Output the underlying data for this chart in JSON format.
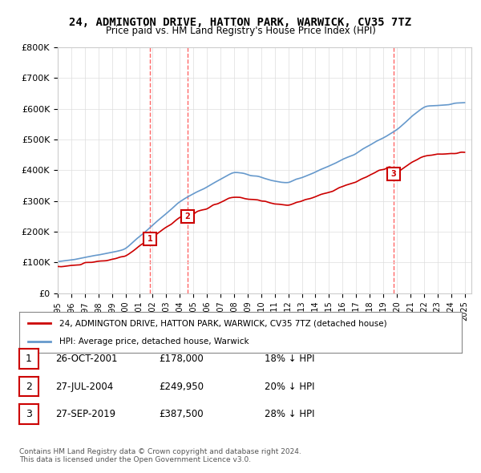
{
  "title": "24, ADMINGTON DRIVE, HATTON PARK, WARWICK, CV35 7TZ",
  "subtitle": "Price paid vs. HM Land Registry's House Price Index (HPI)",
  "ylabel": "",
  "ylim": [
    0,
    800000
  ],
  "yticks": [
    0,
    100000,
    200000,
    300000,
    400000,
    500000,
    600000,
    700000,
    800000
  ],
  "ytick_labels": [
    "£0",
    "£100K",
    "£200K",
    "£300K",
    "£400K",
    "£500K",
    "£600K",
    "£700K",
    "£800K"
  ],
  "hpi_color": "#6699cc",
  "price_color": "#cc0000",
  "sale_marker_color": "#cc0000",
  "vline_color": "#ff6666",
  "background_color": "#ffffff",
  "grid_color": "#dddddd",
  "sales": [
    {
      "date_num": 2001.82,
      "price": 178000,
      "label": "1"
    },
    {
      "date_num": 2004.57,
      "price": 249950,
      "label": "2"
    },
    {
      "date_num": 2019.74,
      "price": 387500,
      "label": "3"
    }
  ],
  "legend_entries": [
    "24, ADMINGTON DRIVE, HATTON PARK, WARWICK, CV35 7TZ (detached house)",
    "HPI: Average price, detached house, Warwick"
  ],
  "table_rows": [
    {
      "num": "1",
      "date": "26-OCT-2001",
      "price": "£178,000",
      "hpi": "18% ↓ HPI"
    },
    {
      "num": "2",
      "date": "27-JUL-2004",
      "price": "£249,950",
      "hpi": "20% ↓ HPI"
    },
    {
      "num": "3",
      "date": "27-SEP-2019",
      "price": "£387,500",
      "hpi": "28% ↓ HPI"
    }
  ],
  "footer": "Contains HM Land Registry data © Crown copyright and database right 2024.\nThis data is licensed under the Open Government Licence v3.0.",
  "xlim": [
    1995,
    2025.5
  ],
  "xtick_years": [
    1995,
    1996,
    1997,
    1998,
    1999,
    2000,
    2001,
    2002,
    2003,
    2004,
    2005,
    2006,
    2007,
    2008,
    2009,
    2010,
    2011,
    2012,
    2013,
    2014,
    2015,
    2016,
    2017,
    2018,
    2019,
    2020,
    2021,
    2022,
    2023,
    2024,
    2025
  ]
}
